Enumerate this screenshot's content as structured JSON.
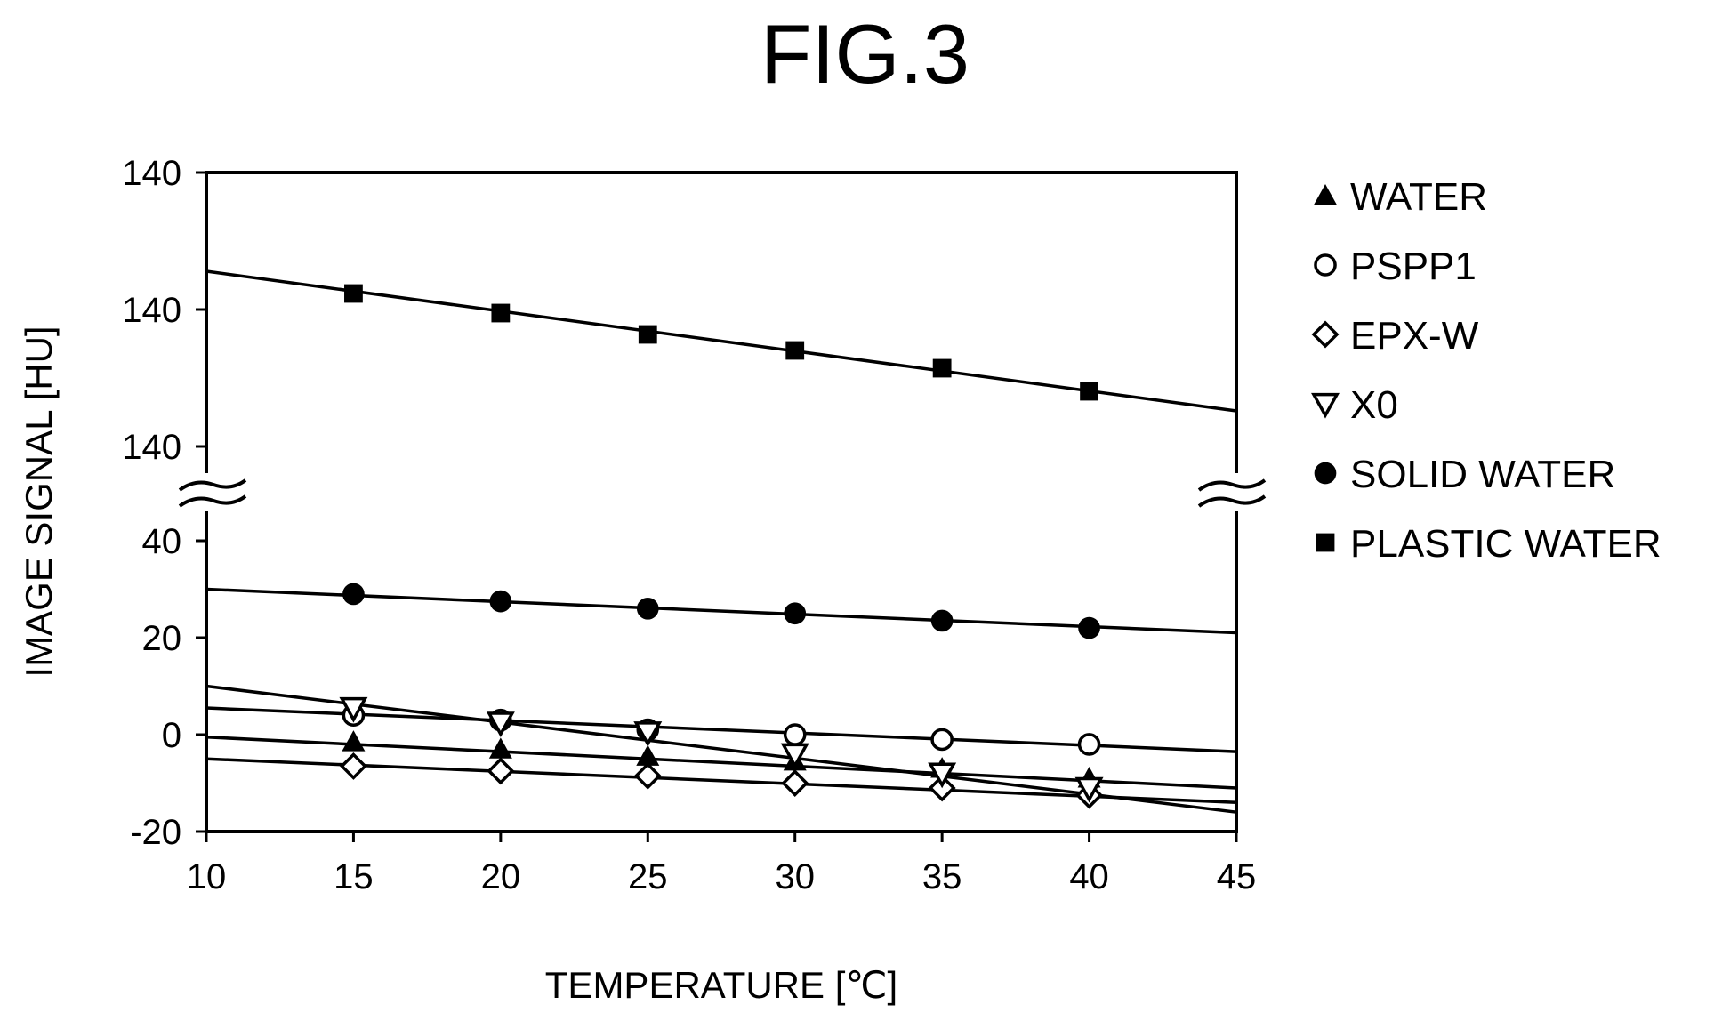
{
  "figure_title": "FIG.3",
  "chart_data": {
    "type": "scatter",
    "xlabel": "TEMPERATURE [℃]",
    "ylabel": "IMAGE SIGNAL [HU]",
    "xlim": [
      10,
      45
    ],
    "xticks": [
      "10",
      "15",
      "20",
      "25",
      "30",
      "35",
      "40",
      "45"
    ],
    "ylim_lower": [
      -20,
      40
    ],
    "yticks_lower": [
      "-20",
      "0",
      "20",
      "40"
    ],
    "yticks_upper": [
      "140",
      "140",
      "140"
    ],
    "broken_y_axis": true,
    "grid": false,
    "legend_position": "right",
    "x": [
      15,
      20,
      25,
      30,
      35,
      40
    ],
    "series": [
      {
        "name": "WATER",
        "marker": "triangle-up-filled",
        "values": [
          -1.5,
          -3,
          -4.5,
          -5.5,
          -7,
          -9
        ],
        "fit": [
          [
            10,
            -0.5
          ],
          [
            45,
            -11
          ]
        ]
      },
      {
        "name": "PSPP1",
        "marker": "circle-open",
        "values": [
          4,
          3,
          1,
          0,
          -1,
          -2
        ],
        "fit": [
          [
            10,
            5.5
          ],
          [
            45,
            -3.5
          ]
        ]
      },
      {
        "name": "EPX-W",
        "marker": "diamond-open",
        "values": [
          -6.5,
          -7.5,
          -8.5,
          -10,
          -11,
          -12.5
        ],
        "fit": [
          [
            10,
            -5
          ],
          [
            45,
            -14
          ]
        ]
      },
      {
        "name": "X0",
        "marker": "triangle-down-open",
        "values": [
          5.5,
          2.5,
          0.5,
          -4,
          -8,
          -11
        ],
        "fit": [
          [
            10,
            10
          ],
          [
            45,
            -16
          ]
        ]
      },
      {
        "name": "SOLID WATER",
        "marker": "circle-filled",
        "values": [
          29,
          27.5,
          26,
          25,
          23.5,
          22
        ],
        "fit": [
          [
            10,
            30
          ],
          [
            45,
            21
          ]
        ]
      },
      {
        "name": "PLASTIC WATER",
        "marker": "square-filled",
        "upper_segment": true,
        "values": [],
        "fit": []
      }
    ]
  }
}
